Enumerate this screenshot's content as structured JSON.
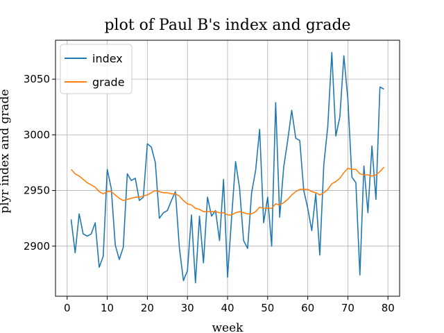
{
  "chart_data": {
    "type": "line",
    "title": "plot of Paul B's index and grade",
    "xlabel": "week",
    "ylabel": "plyr index and grade",
    "xlim": [
      -2.9,
      82.9
    ],
    "ylim": [
      2855,
      3085
    ],
    "xticks": [
      0,
      10,
      20,
      30,
      40,
      50,
      60,
      70,
      80
    ],
    "yticks": [
      2900,
      2950,
      3000,
      3050
    ],
    "grid": true,
    "legend_position": "top-left",
    "x": [
      1,
      2,
      3,
      4,
      5,
      6,
      7,
      8,
      9,
      10,
      11,
      12,
      13,
      14,
      15,
      16,
      17,
      18,
      19,
      20,
      21,
      22,
      23,
      24,
      25,
      26,
      27,
      28,
      29,
      30,
      31,
      32,
      33,
      34,
      35,
      36,
      37,
      38,
      39,
      40,
      41,
      42,
      43,
      44,
      45,
      46,
      47,
      48,
      49,
      50,
      51,
      52,
      53,
      54,
      55,
      56,
      57,
      58,
      59,
      60,
      61,
      62,
      63,
      64,
      65,
      66,
      67,
      68,
      69,
      70,
      71,
      72,
      73,
      74,
      75,
      76,
      77,
      78,
      79
    ],
    "series": [
      {
        "name": "index",
        "color": "#1f77b4",
        "values": [
          2924,
          2894,
          2929,
          2911,
          2909,
          2911,
          2921,
          2881,
          2891,
          2969,
          2952,
          2901,
          2888,
          2899,
          2965,
          2959,
          2961,
          2941,
          2944,
          2992,
          2989,
          2975,
          2925,
          2930,
          2932,
          2941,
          2949,
          2898,
          2869,
          2878,
          2928,
          2867,
          2927,
          2885,
          2944,
          2927,
          2932,
          2905,
          2960,
          2872,
          2925,
          2976,
          2952,
          2905,
          2898,
          2948,
          2968,
          3005,
          2921,
          2944,
          2900,
          3029,
          2926,
          2971,
          2995,
          3022,
          2997,
          2995,
          2950,
          2934,
          2914,
          2947,
          2892,
          2973,
          3008,
          3074,
          2999,
          3016,
          3071,
          3032,
          2962,
          2957,
          2874,
          2972,
          2930,
          2990,
          2942,
          3043,
          3041
        ]
      },
      {
        "name": "grade",
        "color": "#ff7f0e",
        "values": [
          2969,
          2965,
          2963,
          2960,
          2957,
          2955,
          2953,
          2949,
          2947,
          2949,
          2949,
          2946,
          2943,
          2941,
          2942,
          2943,
          2944,
          2944,
          2945,
          2946,
          2948,
          2950,
          2949,
          2948,
          2948,
          2947,
          2947,
          2945,
          2941,
          2938,
          2937,
          2934,
          2933,
          2931,
          2931,
          2931,
          2931,
          2930,
          2930,
          2928,
          2928,
          2930,
          2931,
          2930,
          2929,
          2929,
          2931,
          2935,
          2934,
          2934,
          2934,
          2938,
          2937,
          2939,
          2942,
          2946,
          2949,
          2951,
          2951,
          2951,
          2949,
          2948,
          2946,
          2948,
          2951,
          2956,
          2958,
          2961,
          2966,
          2970,
          2969,
          2969,
          2965,
          2964,
          2964,
          2963,
          2964,
          2967,
          2971
        ]
      }
    ]
  }
}
